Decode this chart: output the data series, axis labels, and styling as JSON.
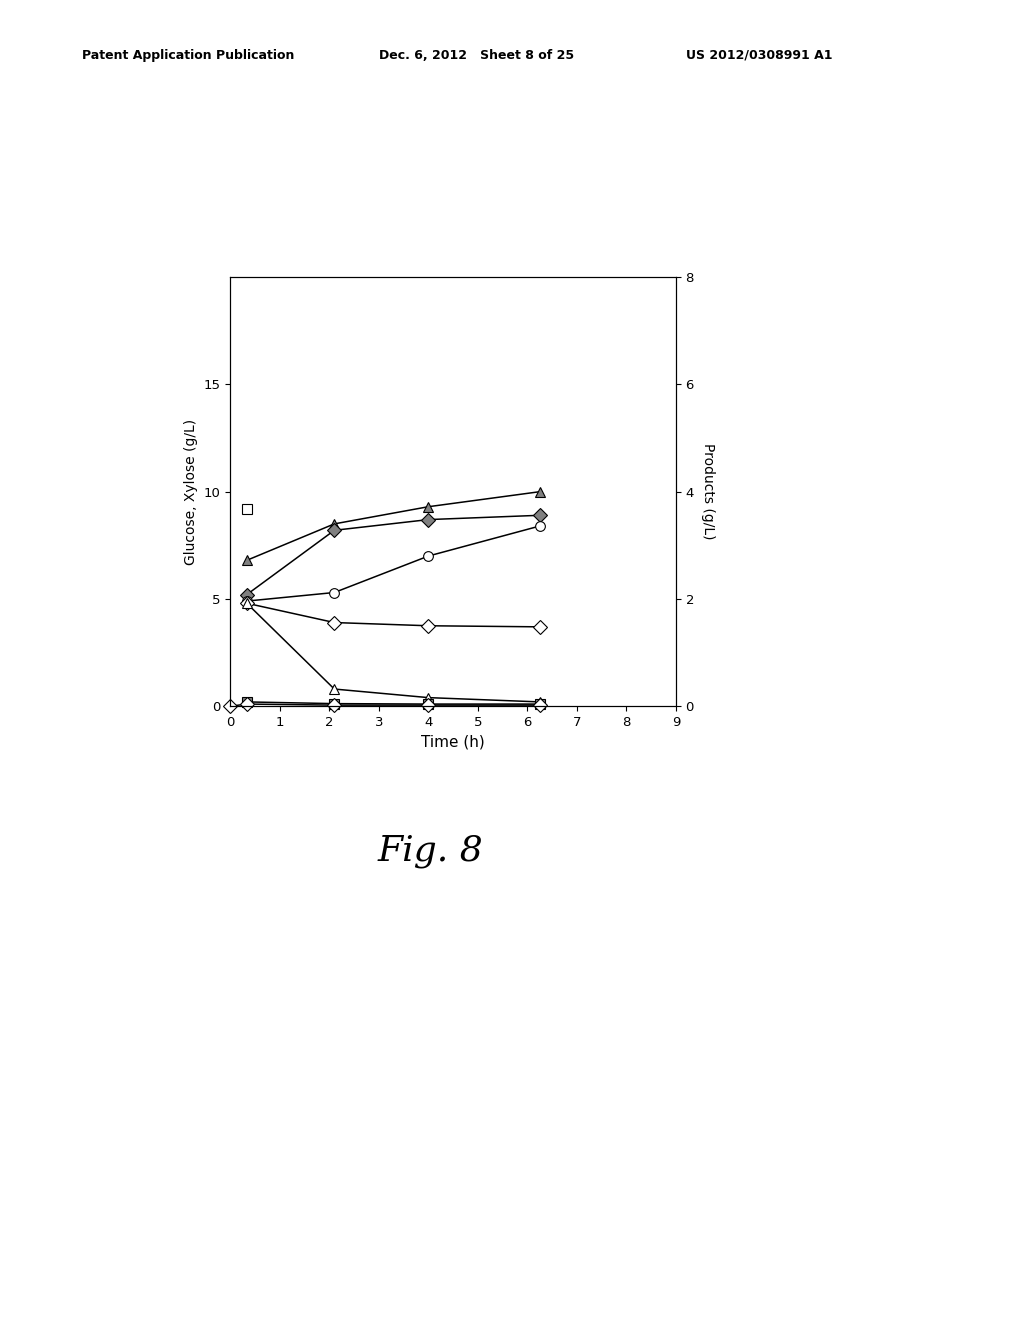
{
  "header_left": "Patent Application Publication",
  "header_mid": "Dec. 6, 2012   Sheet 8 of 25",
  "header_right": "US 2012/0308991 A1",
  "fig_label": "Fig. 8",
  "ylabel_left": "Glucose, Xylose (g/L)",
  "ylabel_right": "Products (g/L)",
  "xlabel": "Time (h)",
  "xlim": [
    0,
    9
  ],
  "ylim_left": [
    0,
    20
  ],
  "xticks": [
    0,
    1,
    2,
    3,
    4,
    5,
    6,
    7,
    8,
    9
  ],
  "yticks_left": [
    0,
    5,
    10,
    15
  ],
  "yticks_right_vals": [
    0,
    2,
    4,
    6,
    8
  ],
  "background_color": "#ffffff",
  "series_data": [
    {
      "x": [
        0.33
      ],
      "y": [
        9.2
      ],
      "marker": "s",
      "filled": false,
      "note": "open square - glucose single point"
    },
    {
      "x": [
        0.33,
        2.1,
        4.0,
        6.25
      ],
      "y": [
        6.8,
        8.5,
        9.3,
        10.0
      ],
      "marker": "^",
      "filled": true,
      "note": "filled triangle - rising product (ethanol)"
    },
    {
      "x": [
        0.33,
        2.1,
        4.0,
        6.25
      ],
      "y": [
        5.2,
        8.2,
        8.7,
        8.9
      ],
      "marker": "D",
      "filled": true,
      "note": "filled diamond - rising product"
    },
    {
      "x": [
        0.33,
        2.1,
        4.0,
        6.25
      ],
      "y": [
        4.9,
        5.3,
        7.0,
        8.4
      ],
      "marker": "o",
      "filled": false,
      "note": "open circle - rising product"
    },
    {
      "x": [
        0.33,
        2.1,
        4.0,
        6.25
      ],
      "y": [
        4.8,
        3.9,
        3.75,
        3.7
      ],
      "marker": "D",
      "filled": false,
      "note": "open diamond - flat ~3.7"
    },
    {
      "x": [
        0.33,
        2.1,
        4.0,
        6.25
      ],
      "y": [
        4.8,
        0.8,
        0.4,
        0.2
      ],
      "marker": "^",
      "filled": false,
      "note": "open triangle - xylose decreasing"
    },
    {
      "x": [
        0.33,
        2.1,
        4.0,
        6.25
      ],
      "y": [
        0.2,
        0.12,
        0.1,
        0.1
      ],
      "marker": "s",
      "filled": true,
      "note": "filled square near zero"
    },
    {
      "x": [
        0.0,
        0.33,
        2.1,
        4.0,
        6.25
      ],
      "y": [
        0.0,
        0.1,
        0.05,
        0.05,
        0.05
      ],
      "marker": "D",
      "filled": false,
      "note": "open diamond at bottom near zero"
    }
  ]
}
